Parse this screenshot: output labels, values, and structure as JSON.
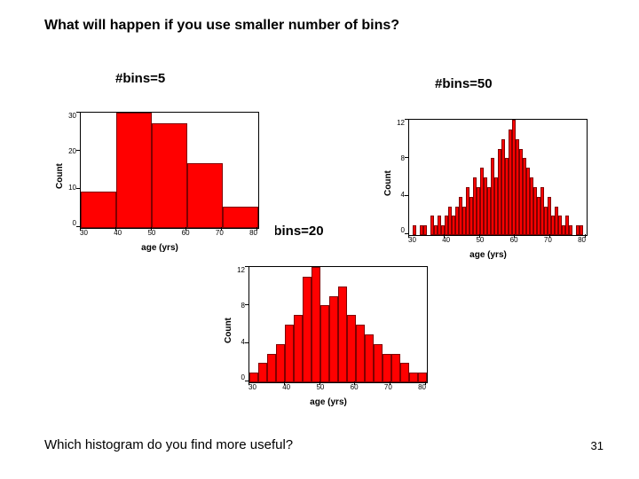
{
  "title_question": "What will happen if you use smaller number of bins?",
  "bottom_question": "Which histogram do you find more useful?",
  "page_number": "31",
  "labels": {
    "bins5": "#bins=5",
    "bins20": "#bins=20",
    "bins50": "#bins=50"
  },
  "common": {
    "xlabel": "age (yrs)",
    "ylabel": "Count",
    "bar_color": "#ff0000",
    "bar_border": "#800000",
    "axis_color": "#000000",
    "background": "#ffffff",
    "label_fontsize_pt": 10,
    "tick_fontsize_pt": 8
  },
  "hist5": {
    "type": "histogram",
    "bins": 5,
    "x_ticks": [
      "30",
      "40",
      "50",
      "60",
      "70",
      "80"
    ],
    "y_ticks": [
      "30",
      "20",
      "10",
      "0"
    ],
    "xlim": [
      30,
      80
    ],
    "values": [
      10,
      32,
      29,
      18,
      6
    ]
  },
  "hist20": {
    "type": "histogram",
    "bins": 20,
    "x_ticks": [
      "30",
      "40",
      "50",
      "60",
      "70",
      "80"
    ],
    "y_ticks": [
      "12",
      "8",
      "4",
      "0"
    ],
    "xlim": [
      30,
      80
    ],
    "values": [
      1,
      2,
      3,
      4,
      6,
      7,
      11,
      12,
      8,
      9,
      10,
      7,
      6,
      5,
      4,
      3,
      3,
      2,
      1,
      1
    ]
  },
  "hist50": {
    "type": "histogram",
    "bins": 50,
    "x_ticks": [
      "30",
      "40",
      "50",
      "60",
      "70",
      "80"
    ],
    "y_ticks": [
      "12",
      "8",
      "4",
      "0"
    ],
    "xlim": [
      30,
      80
    ],
    "values": [
      0,
      1,
      0,
      1,
      1,
      0,
      2,
      1,
      2,
      1,
      2,
      3,
      2,
      3,
      4,
      3,
      5,
      4,
      6,
      5,
      7,
      6,
      5,
      8,
      6,
      9,
      10,
      8,
      11,
      12,
      10,
      9,
      8,
      7,
      6,
      5,
      4,
      5,
      3,
      4,
      2,
      3,
      2,
      1,
      2,
      1,
      0,
      1,
      1,
      0
    ]
  }
}
